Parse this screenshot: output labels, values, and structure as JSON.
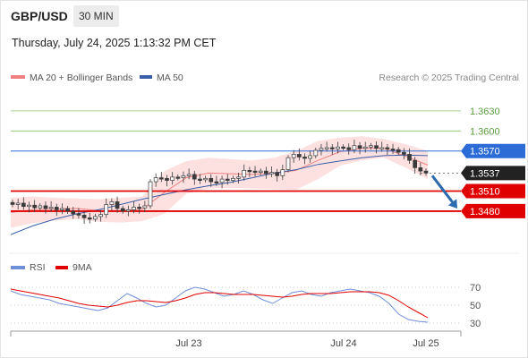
{
  "header": {
    "pair": "GBP/USD",
    "timeframe": "30 MIN",
    "datetime": "Thursday, July 24, 2025 1:13:32 PM CET"
  },
  "legend": {
    "ma20_label": "MA 20 + Bollinger Bands",
    "ma50_label": "MA 50",
    "credit": "Research © 2025 Trading Central",
    "rsi_label": "RSI",
    "rsi_ma_label": "9MA"
  },
  "colors": {
    "ma20": "#f08080",
    "ma50": "#3a5fa8",
    "bands_fill": "#fde1e1",
    "candle": "#3a3a3a",
    "resistance": "#8ac46a",
    "pivot": "#2d6bd6",
    "support": "#e00000",
    "current": "#222222",
    "arrow": "#2a6aad",
    "rsi": "#6f8fd8",
    "rsi_ma": "#e00000"
  },
  "chart_data": [
    {
      "type": "candlestick",
      "name": "price",
      "ylim": [
        1.3421,
        1.3662
      ],
      "x_ticks": [
        "Jul 23",
        "Jul 24",
        "Jul 25"
      ],
      "ohlc_close_path": [
        1.349,
        1.3492,
        1.3487,
        1.3489,
        1.3485,
        1.3488,
        1.3484,
        1.3486,
        1.3482,
        1.3484,
        1.348,
        1.3476,
        1.3474,
        1.347,
        1.3468,
        1.3472,
        1.3475,
        1.349,
        1.3494,
        1.3484,
        1.348,
        1.3482,
        1.3486,
        1.3485,
        1.3488,
        1.3524,
        1.353,
        1.3529,
        1.3526,
        1.3531,
        1.353,
        1.3533,
        1.3535,
        1.3528,
        1.3527,
        1.3529,
        1.3524,
        1.3523,
        1.3528,
        1.3526,
        1.3529,
        1.3531,
        1.3541,
        1.354,
        1.3538,
        1.354,
        1.3536,
        1.3538,
        1.3533,
        1.3542,
        1.356,
        1.3565,
        1.3561,
        1.3559,
        1.3563,
        1.3571,
        1.3574,
        1.3575,
        1.3573,
        1.3576,
        1.3575,
        1.3572,
        1.3578,
        1.3574,
        1.3576,
        1.3578,
        1.3574,
        1.3575,
        1.3573,
        1.3572,
        1.3568,
        1.3565,
        1.3556,
        1.3545,
        1.354,
        1.3537
      ],
      "bollinger": {
        "upper": [
          1.35,
          1.3502,
          1.35,
          1.3499,
          1.3498,
          1.35,
          1.3502,
          1.354,
          1.3555,
          1.356,
          1.3558,
          1.3556,
          1.356,
          1.357,
          1.3585,
          1.359,
          1.3592,
          1.3588,
          1.358,
          1.357
        ],
        "lower": [
          1.3455,
          1.3462,
          1.3466,
          1.3468,
          1.3464,
          1.3463,
          1.3465,
          1.3476,
          1.3506,
          1.3514,
          1.3515,
          1.3514,
          1.3513,
          1.3512,
          1.3528,
          1.3548,
          1.3556,
          1.356,
          1.3545,
          1.3528
        ],
        "ma20": [
          1.3478,
          1.3482,
          1.3483,
          1.3484,
          1.3481,
          1.3481,
          1.3483,
          1.3508,
          1.353,
          1.3537,
          1.3536,
          1.3535,
          1.3537,
          1.3541,
          1.3556,
          1.3569,
          1.3574,
          1.3574,
          1.3562,
          1.3549
        ]
      },
      "ma50": [
        1.3445,
        1.3458,
        1.3468,
        1.3476,
        1.3482,
        1.349,
        1.3498,
        1.3505,
        1.3512,
        1.3518,
        1.3523,
        1.353,
        1.3537,
        1.3542,
        1.355,
        1.3555,
        1.356,
        1.3563,
        1.3564,
        1.3563
      ],
      "levels": [
        {
          "value": 1.363,
          "label": "1.3630",
          "kind": "resistance"
        },
        {
          "value": 1.36,
          "label": "1.3600",
          "kind": "resistance"
        },
        {
          "value": 1.357,
          "label": "1.3570",
          "kind": "pivot"
        },
        {
          "value": 1.3537,
          "label": "1.3537",
          "kind": "current"
        },
        {
          "value": 1.351,
          "label": "1.3510",
          "kind": "support"
        },
        {
          "value": 1.348,
          "label": "1.3480",
          "kind": "support"
        }
      ],
      "forecast_arrow": {
        "from": 1.3533,
        "to": 1.3484,
        "direction": "down"
      }
    },
    {
      "type": "line",
      "name": "rsi",
      "ylim": [
        27,
        78
      ],
      "y_ticks": [
        70,
        50,
        30
      ],
      "rsi": [
        66,
        62,
        60,
        58,
        56,
        52,
        50,
        48,
        46,
        44,
        47,
        55,
        63,
        58,
        52,
        48,
        50,
        58,
        66,
        70,
        68,
        64,
        60,
        62,
        66,
        62,
        56,
        52,
        58,
        64,
        66,
        62,
        60,
        64,
        66,
        68,
        66,
        64,
        60,
        52,
        40,
        34,
        32,
        31
      ],
      "rsi_ma": [
        68,
        66,
        64,
        62,
        60,
        58,
        55,
        52,
        50,
        49,
        48,
        50,
        53,
        55,
        55,
        54,
        53,
        55,
        58,
        62,
        64,
        64,
        63,
        62,
        62,
        62,
        61,
        60,
        59,
        60,
        62,
        63,
        63,
        63,
        64,
        65,
        65,
        65,
        64,
        61,
        55,
        48,
        42,
        36
      ]
    }
  ]
}
